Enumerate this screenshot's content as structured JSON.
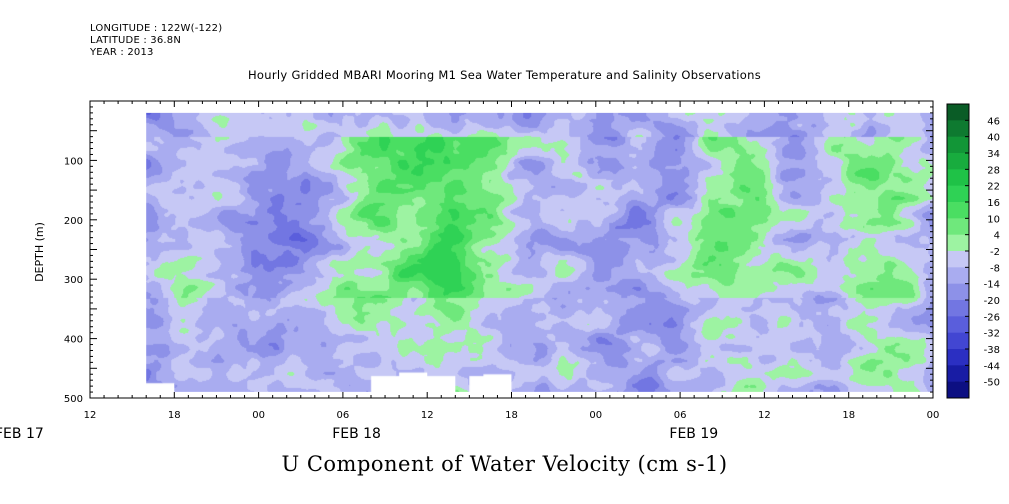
{
  "meta": {
    "longitude": "LONGITUDE : 122W(-122)",
    "latitude": "LATITUDE : 36.8N",
    "year": "YEAR : 2013"
  },
  "chart_data": {
    "type": "heatmap",
    "title": "Hourly Gridded MBARI Mooring M1 Sea Water Temperature and Salinity Observations",
    "xlabel": "U Component of Water Velocity (cm s-1)",
    "ylabel": "DEPTH (m)",
    "x_ticks": [
      "12",
      "18",
      "00",
      "06",
      "12",
      "18",
      "00",
      "06",
      "12",
      "18",
      "00"
    ],
    "x_day_labels": [
      "FEB 17",
      "FEB 18",
      "FEB 19"
    ],
    "y_ticks": [
      "100",
      "200",
      "300",
      "400",
      "500"
    ],
    "ylim": [
      500,
      0
    ],
    "colorbar_labels": [
      "46",
      "40",
      "34",
      "28",
      "22",
      "16",
      "10",
      "4",
      "-2",
      "-8",
      "-14",
      "-20",
      "-26",
      "-32",
      "-38",
      "-44",
      "-50"
    ],
    "colorbar_colors": [
      "#0a5c26",
      "#0e7a30",
      "#129637",
      "#18ac3e",
      "#1fc247",
      "#2fd255",
      "#4ade62",
      "#6fe87c",
      "#9df3a2",
      "#c6c8f5",
      "#a9acf0",
      "#8d91e8",
      "#7276e2",
      "#5a5edc",
      "#4246d2",
      "#2b2fc2",
      "#181ca4",
      "#0c0f82"
    ],
    "data_start": "FEB 17 16:00",
    "data_end": "FEB 20 00:00",
    "depth_range": [
      20,
      490
    ]
  }
}
